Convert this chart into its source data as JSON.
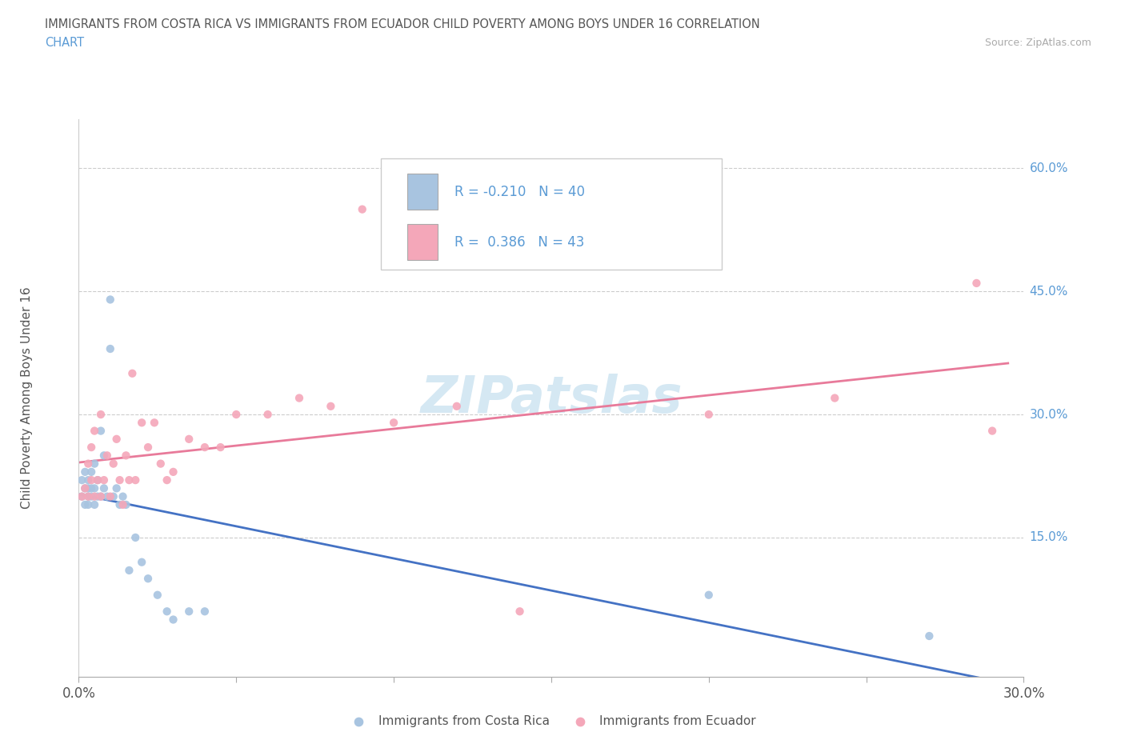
{
  "title_line1": "IMMIGRANTS FROM COSTA RICA VS IMMIGRANTS FROM ECUADOR CHILD POVERTY AMONG BOYS UNDER 16 CORRELATION",
  "title_line2": "CHART",
  "source": "Source: ZipAtlas.com",
  "ylabel": "Child Poverty Among Boys Under 16",
  "ytick_labels": [
    "15.0%",
    "30.0%",
    "45.0%",
    "60.0%"
  ],
  "ytick_values": [
    0.15,
    0.3,
    0.45,
    0.6
  ],
  "xrange": [
    0.0,
    0.3
  ],
  "yrange": [
    -0.02,
    0.66
  ],
  "R_costa_rica": -0.21,
  "N_costa_rica": 40,
  "R_ecuador": 0.386,
  "N_ecuador": 43,
  "legend_labels": [
    "Immigrants from Costa Rica",
    "Immigrants from Ecuador"
  ],
  "color_costa_rica": "#a8c4e0",
  "color_ecuador": "#f4a7b9",
  "line_color_costa_rica": "#4472c4",
  "line_color_ecuador": "#e87a9a",
  "watermark_color": "#d5e8f3",
  "title_color": "#555555",
  "source_color": "#aaaaaa",
  "ytick_color": "#5b9bd5",
  "xtick_color": "#555555",
  "ylabel_color": "#555555",
  "cr_x": [
    0.001,
    0.001,
    0.002,
    0.002,
    0.002,
    0.003,
    0.003,
    0.003,
    0.003,
    0.004,
    0.004,
    0.004,
    0.005,
    0.005,
    0.005,
    0.006,
    0.006,
    0.007,
    0.007,
    0.008,
    0.008,
    0.009,
    0.01,
    0.01,
    0.011,
    0.012,
    0.013,
    0.014,
    0.015,
    0.016,
    0.018,
    0.02,
    0.022,
    0.025,
    0.028,
    0.03,
    0.035,
    0.04,
    0.2,
    0.27
  ],
  "cr_y": [
    0.2,
    0.22,
    0.19,
    0.21,
    0.23,
    0.19,
    0.2,
    0.21,
    0.22,
    0.2,
    0.21,
    0.23,
    0.19,
    0.21,
    0.24,
    0.2,
    0.22,
    0.2,
    0.28,
    0.21,
    0.25,
    0.2,
    0.38,
    0.44,
    0.2,
    0.21,
    0.19,
    0.2,
    0.19,
    0.11,
    0.15,
    0.12,
    0.1,
    0.08,
    0.06,
    0.05,
    0.06,
    0.06,
    0.08,
    0.03
  ],
  "ec_x": [
    0.001,
    0.002,
    0.003,
    0.003,
    0.004,
    0.004,
    0.005,
    0.005,
    0.006,
    0.007,
    0.007,
    0.008,
    0.009,
    0.01,
    0.011,
    0.012,
    0.013,
    0.014,
    0.015,
    0.016,
    0.017,
    0.018,
    0.02,
    0.022,
    0.024,
    0.026,
    0.028,
    0.03,
    0.035,
    0.04,
    0.045,
    0.05,
    0.06,
    0.07,
    0.08,
    0.09,
    0.1,
    0.12,
    0.14,
    0.2,
    0.24,
    0.285,
    0.29
  ],
  "ec_y": [
    0.2,
    0.21,
    0.2,
    0.24,
    0.22,
    0.26,
    0.2,
    0.28,
    0.22,
    0.2,
    0.3,
    0.22,
    0.25,
    0.2,
    0.24,
    0.27,
    0.22,
    0.19,
    0.25,
    0.22,
    0.35,
    0.22,
    0.29,
    0.26,
    0.29,
    0.24,
    0.22,
    0.23,
    0.27,
    0.26,
    0.26,
    0.3,
    0.3,
    0.32,
    0.31,
    0.55,
    0.29,
    0.31,
    0.06,
    0.3,
    0.32,
    0.46,
    0.28
  ]
}
